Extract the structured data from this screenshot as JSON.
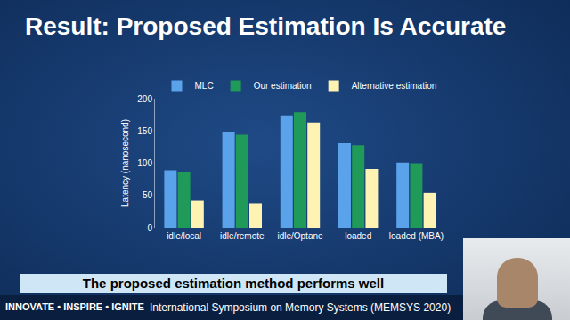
{
  "chart_data": {
    "type": "bar",
    "title": "Result: Proposed Estimation Is Accurate",
    "y_label": "Latency (nanosecond)",
    "categories": [
      "idle/local",
      "idle/remote",
      "idle/Optane",
      "loaded",
      "loaded (MBA)"
    ],
    "series": [
      {
        "name": "MLC",
        "color": "#5aa3ea",
        "values": [
          89,
          148,
          174,
          131,
          101
        ]
      },
      {
        "name": "Our estimation",
        "color": "#1f9a58",
        "values": [
          86,
          144,
          179,
          128,
          100
        ]
      },
      {
        "name": "Alternative estimation",
        "color": "#fff3b3",
        "values": [
          42,
          38,
          163,
          91,
          54
        ]
      }
    ],
    "ylim": [
      0,
      200
    ],
    "yticks": [
      0,
      50,
      100,
      150,
      200
    ],
    "grid": false,
    "legend": "top",
    "annotations": [
      "The proposed estimation method performs well",
      "INNOVATE • INSPIRE • IGNITE",
      "International Symposium on Memory Systems (MEMSYS 2020)"
    ]
  }
}
